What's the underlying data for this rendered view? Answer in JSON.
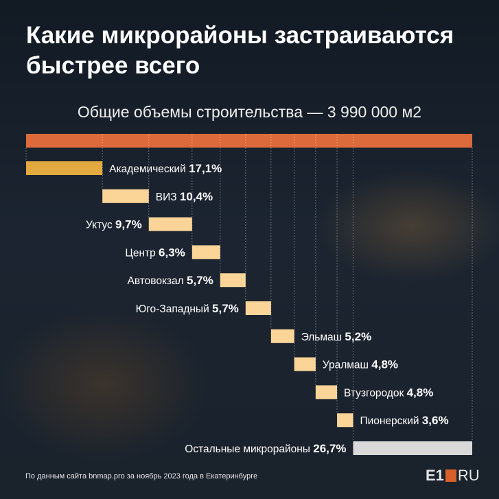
{
  "title": "Какие микрорайоны застраиваются быстрее всего",
  "subtitle": "Общие объемы строительства — 3 990 000 м2",
  "footer": "По данным сайта bnmap.pro за ноябрь 2023 года в Екатеринбурге",
  "logo": {
    "left": "E1",
    "right": "RU"
  },
  "colors": {
    "total": "#dc6a3a",
    "first": "#e4a840",
    "item": "#fbd597",
    "rest": "#d9d9d9"
  },
  "chart_data": {
    "type": "bar",
    "title": "Общие объемы строительства — 3 990 000 м2",
    "total": 100,
    "categories": [
      "Академический",
      "ВИЗ",
      "Уктус",
      "Центр",
      "Автовокзал",
      "Юго-Западный",
      "Эльмаш",
      "Уралмаш",
      "Втузгородок",
      "Пионерский",
      "Остальные микрорайоны"
    ],
    "values": [
      17.1,
      10.4,
      9.7,
      6.3,
      5.7,
      5.7,
      5.2,
      4.8,
      4.8,
      3.6,
      26.7
    ],
    "labels": [
      "17,1%",
      "10,4%",
      "9,7%",
      "6,3%",
      "5,7%",
      "5,7%",
      "5,2%",
      "4,8%",
      "4,8%",
      "3,6%",
      "26,7%"
    ],
    "label_side": [
      "right",
      "right",
      "left",
      "left",
      "left",
      "left",
      "right",
      "right",
      "right",
      "right",
      "left"
    ]
  }
}
